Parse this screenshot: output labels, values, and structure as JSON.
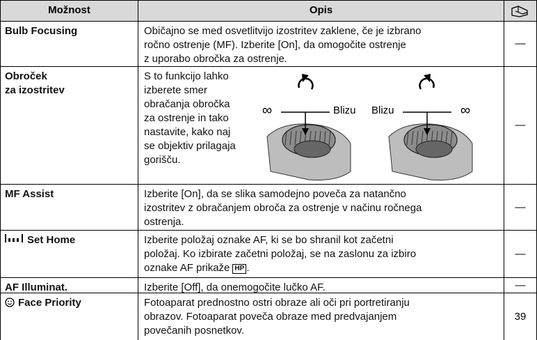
{
  "header": {
    "option": "Možnost",
    "description": "Opis"
  },
  "rows": [
    {
      "option": [
        "Bulb Focusing"
      ],
      "description": [
        "Običajno se med osvetlitvijo izostritev zaklene, če je izbrano",
        "ročno ostrenje (MF). Izberite [On], da omogočite ostrenje",
        "z uporabo obročka za ostrenje."
      ],
      "ref": "—"
    },
    {
      "option": [
        "Obroček",
        "za izostritev"
      ],
      "description": [
        "S to funkcijo lahko",
        "izberete smer",
        "obračanja obročka",
        "za ostrenje in tako",
        "nastavite, kako naj",
        "se objektiv prilagaja",
        "gorišču."
      ],
      "figure": {
        "left": {
          "infinity": "∞",
          "near": "Blizu"
        },
        "right": {
          "near": "Blizu",
          "infinity": "∞"
        }
      },
      "ref": "—"
    },
    {
      "option": [
        "MF Assist"
      ],
      "description": [
        "Izberite [On], da se slika samodejno poveča za natančno",
        "izostritev z obračanjem obroča za ostrenje v načinu ročnega",
        "ostrenja."
      ],
      "ref": "—"
    },
    {
      "option": [
        "Set Home"
      ],
      "description": [
        "Izberite položaj oznake AF, ki se bo shranil kot začetni",
        "položaj. Ko izbirate začetni položaj, se na zaslonu za izbiro",
        "oznake AF prikaže"
      ],
      "badge": "HP",
      "badge_suffix": ".",
      "ref": "—"
    },
    {
      "option": [
        "AF Illuminat."
      ],
      "description": [
        "Izberite [Off], da onemogočite lučko AF."
      ],
      "ref": "—"
    },
    {
      "option": [
        "Face Priority"
      ],
      "description": [
        "Fotoaparat prednostno ostri obraze ali oči pri portretiranju",
        "obrazov. Fotoaparat poveča obraze med predvajanjem",
        "povečanih posnetkov."
      ],
      "ref": "39"
    }
  ]
}
